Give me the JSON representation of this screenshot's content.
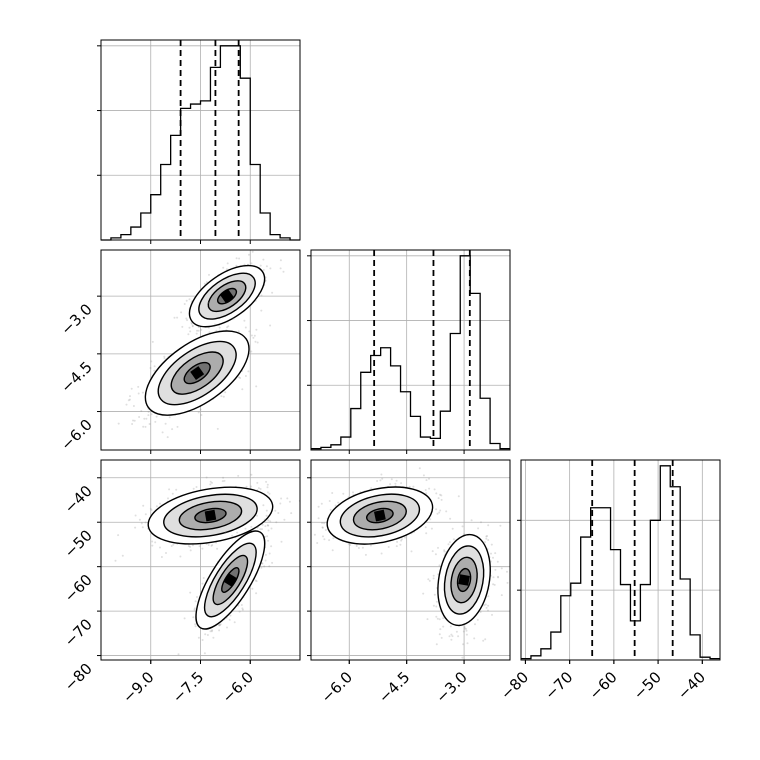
{
  "chart_data": {
    "type": "corner",
    "variables": [
      {
        "key": "p0",
        "range": [
          -10.5,
          -4.5
        ],
        "ticks": [
          -9.0,
          -7.5,
          -6.0
        ],
        "tick_labels": [
          "−9.0",
          "−7.5",
          "−6.0"
        ]
      },
      {
        "key": "p1",
        "range": [
          -7.0,
          -1.8
        ],
        "ticks": [
          -6.0,
          -4.5,
          -3.0
        ],
        "tick_labels": [
          "−6.0",
          "−4.5",
          "−3.0"
        ]
      },
      {
        "key": "p2",
        "range": [
          -81,
          -36
        ],
        "ticks": [
          -80,
          -70,
          -60,
          -50,
          -40
        ],
        "tick_labels": [
          "−80",
          "−70",
          "−60",
          "−50",
          "−40"
        ]
      }
    ],
    "histograms": [
      {
        "variable": "p0",
        "bin_edges": [
          -10.5,
          -10.2,
          -9.9,
          -9.6,
          -9.3,
          -9.0,
          -8.7,
          -8.4,
          -8.1,
          -7.8,
          -7.5,
          -7.2,
          -6.9,
          -6.6,
          -6.3,
          -6.0,
          -5.7,
          -5.4,
          -5.1,
          -4.8,
          -4.5
        ],
        "counts": [
          0,
          2,
          5,
          12,
          25,
          42,
          70,
          97,
          122,
          126,
          129,
          160,
          180,
          180,
          150,
          70,
          25,
          5,
          2,
          0
        ],
        "quantile_lines": [
          -8.1,
          -7.05,
          -6.35
        ],
        "y_ticks": [
          60,
          120,
          180
        ]
      },
      {
        "variable": "p1",
        "bin_edges": [
          -7.0,
          -6.74,
          -6.48,
          -6.22,
          -5.96,
          -5.7,
          -5.44,
          -5.18,
          -4.92,
          -4.66,
          -4.4,
          -4.14,
          -3.88,
          -3.62,
          -3.36,
          -3.1,
          -2.84,
          -2.58,
          -2.32,
          -2.06,
          -1.8
        ],
        "counts": [
          1,
          2,
          4,
          10,
          32,
          60,
          73,
          79,
          65,
          45,
          26,
          10,
          9,
          30,
          90,
          150,
          121,
          40,
          5,
          1
        ],
        "quantile_lines": [
          -5.35,
          -3.8,
          -2.85
        ],
        "y_ticks": [
          50,
          100,
          150
        ]
      },
      {
        "variable": "p2",
        "bin_edges": [
          -81.0,
          -78.75,
          -76.5,
          -74.25,
          -72.0,
          -69.75,
          -67.5,
          -65.25,
          -63.0,
          -60.75,
          -58.5,
          -56.25,
          -54.0,
          -51.75,
          -49.5,
          -47.25,
          -45.0,
          -42.75,
          -40.5,
          -38.25,
          -36.0
        ],
        "counts": [
          1,
          3,
          8,
          20,
          46,
          55,
          88,
          109,
          109,
          79,
          54,
          28,
          54,
          100,
          139,
          124,
          58,
          18,
          2,
          1
        ],
        "quantile_lines": [
          -64.9,
          -55.3,
          -46.7
        ],
        "y_ticks": [
          50,
          100
        ]
      }
    ],
    "scatter_panels": [
      {
        "x": "p0",
        "y": "p1",
        "clusters": [
          {
            "center": [
              -6.7,
              -3.0
            ],
            "sd_major": 0.65,
            "sd_minor": 0.33,
            "angle_deg": 35,
            "n": 600
          },
          {
            "center": [
              -7.6,
              -5.0
            ],
            "sd_major": 0.9,
            "sd_minor": 0.45,
            "angle_deg": 35,
            "n": 600
          }
        ]
      },
      {
        "x": "p0",
        "y": "p2",
        "clusters": [
          {
            "center": [
              -7.2,
              -48.5
            ],
            "sd_major": 0.95,
            "sd_minor": 0.4,
            "angle_deg": 10,
            "n": 600
          },
          {
            "center": [
              -6.6,
              -63.0
            ],
            "sd_major": 0.85,
            "sd_minor": 0.3,
            "angle_deg": 58,
            "n": 600
          }
        ]
      },
      {
        "x": "p1",
        "y": "p2",
        "clusters": [
          {
            "center": [
              -5.2,
              -48.5
            ],
            "sd_major": 0.7,
            "sd_minor": 0.35,
            "angle_deg": 12,
            "n": 600
          },
          {
            "center": [
              -3.0,
              -63.0
            ],
            "sd_major": 0.6,
            "sd_minor": 0.33,
            "angle_deg": 80,
            "n": 600
          }
        ]
      }
    ],
    "contour_levels_sigma": [
      0.5,
      1.0,
      1.5,
      2.0
    ],
    "grid": true,
    "colors": {
      "line": "#000000",
      "points": "#8c8c8c",
      "grid": "#b0b0b0",
      "background": "#ffffff"
    }
  }
}
